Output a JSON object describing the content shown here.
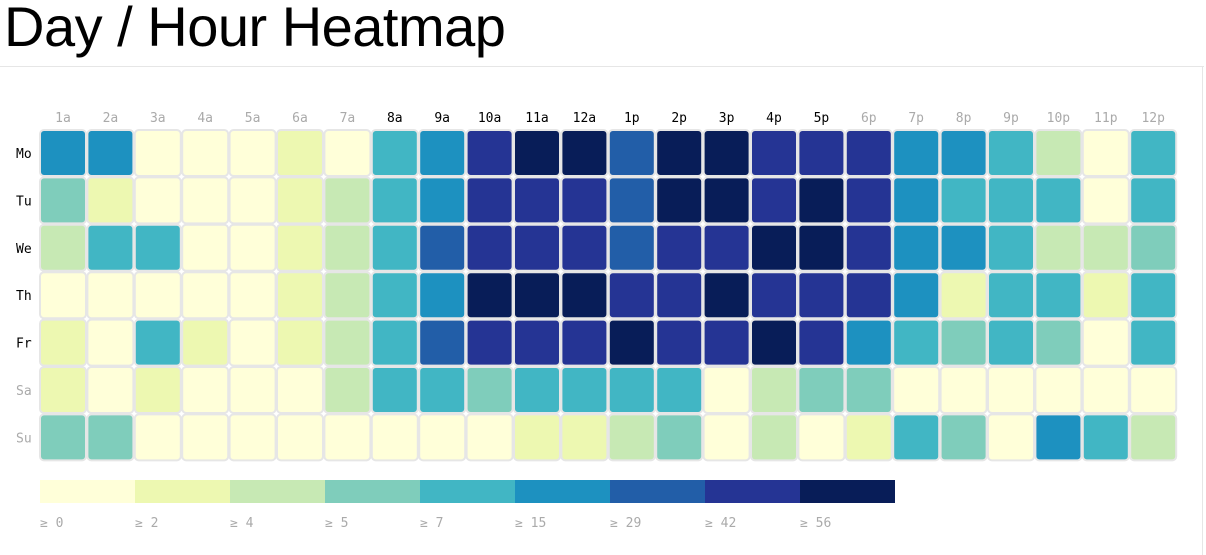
{
  "title": "Day / Hour Heatmap",
  "chart_data": {
    "type": "heatmap",
    "title": "Day / Hour Heatmap",
    "x": [
      "1a",
      "2a",
      "3a",
      "4a",
      "5a",
      "6a",
      "7a",
      "8a",
      "9a",
      "10a",
      "11a",
      "12a",
      "1p",
      "2p",
      "3p",
      "4p",
      "5p",
      "6p",
      "7p",
      "8p",
      "9p",
      "10p",
      "11p",
      "12p"
    ],
    "y": [
      "Mo",
      "Tu",
      "We",
      "Th",
      "Fr",
      "Sa",
      "Su"
    ],
    "highlight_hours": [
      "8a",
      "9a",
      "10a",
      "11a",
      "12a",
      "1p",
      "2p",
      "3p",
      "4p",
      "5p"
    ],
    "highlight_days": [
      "Mo",
      "Tu",
      "We",
      "Th",
      "Fr"
    ],
    "values": [
      [
        15,
        15,
        0,
        0,
        0,
        2,
        0,
        7,
        15,
        42,
        56,
        56,
        29,
        56,
        56,
        42,
        42,
        42,
        15,
        15,
        7,
        4,
        0,
        7
      ],
      [
        5,
        2,
        0,
        0,
        0,
        2,
        4,
        7,
        15,
        42,
        42,
        42,
        29,
        56,
        56,
        42,
        56,
        42,
        15,
        7,
        7,
        7,
        0,
        7
      ],
      [
        4,
        7,
        7,
        0,
        0,
        2,
        4,
        7,
        29,
        42,
        42,
        42,
        29,
        42,
        42,
        56,
        56,
        42,
        15,
        15,
        7,
        4,
        4,
        5
      ],
      [
        0,
        0,
        0,
        0,
        0,
        2,
        4,
        7,
        15,
        56,
        56,
        56,
        42,
        42,
        56,
        42,
        42,
        42,
        15,
        2,
        7,
        7,
        2,
        7
      ],
      [
        2,
        0,
        7,
        2,
        0,
        2,
        4,
        7,
        29,
        42,
        42,
        42,
        56,
        42,
        42,
        56,
        42,
        15,
        7,
        5,
        7,
        5,
        0,
        7
      ],
      [
        2,
        0,
        2,
        0,
        0,
        0,
        4,
        7,
        7,
        5,
        7,
        7,
        7,
        7,
        0,
        4,
        5,
        5,
        0,
        0,
        0,
        0,
        0,
        0
      ],
      [
        5,
        5,
        0,
        0,
        0,
        0,
        0,
        0,
        0,
        0,
        2,
        2,
        4,
        5,
        0,
        4,
        0,
        2,
        7,
        5,
        0,
        15,
        7,
        4
      ]
    ],
    "legend": {
      "thresholds": [
        0,
        2,
        4,
        5,
        7,
        15,
        29,
        42,
        56
      ],
      "labels": [
        "≥ 0",
        "≥ 2",
        "≥ 4",
        "≥ 5",
        "≥ 7",
        "≥ 15",
        "≥ 29",
        "≥ 42",
        "≥ 56"
      ],
      "colors": [
        "#ffffd9",
        "#edf8b1",
        "#c7e9b4",
        "#7fcdbb",
        "#41b6c4",
        "#1d91c0",
        "#225ea8",
        "#253494",
        "#081d58"
      ]
    },
    "colors": {
      "highlight_label": "#000000",
      "dim_label": "#aaaaaa",
      "cell_border": "#e6e6e6"
    }
  }
}
